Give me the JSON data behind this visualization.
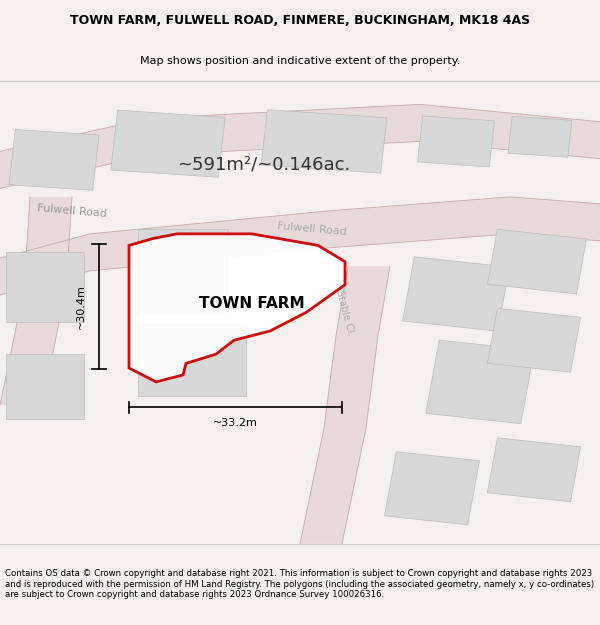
{
  "title_line1": "TOWN FARM, FULWELL ROAD, FINMERE, BUCKINGHAM, MK18 4AS",
  "title_line2": "Map shows position and indicative extent of the property.",
  "area_text": "~591m²/~0.146ac.",
  "property_label": "TOWN FARM",
  "dim_vertical": "~30.4m",
  "dim_horizontal": "~33.2m",
  "road_label1": "Fulwell Road",
  "road_label2": "Fulwell Road",
  "road_label3": "Stable Cl.",
  "footer_text": "Contains OS data © Crown copyright and database right 2021. This information is subject to Crown copyright and database rights 2023 and is reproduced with the permission of HM Land Registry. The polygons (including the associated geometry, namely x, y co-ordinates) are subject to Crown copyright and database rights 2023 Ordnance Survey 100026316.",
  "bg_color": "#f5f0f0",
  "map_bg": "#ffffff",
  "road_color": "#d4c0c0",
  "building_color": "#d8d8d8",
  "property_fill": "#ffffff",
  "property_border": "#cc0000",
  "dim_line_color": "#000000",
  "road_outline_color": "#c8b0b0"
}
